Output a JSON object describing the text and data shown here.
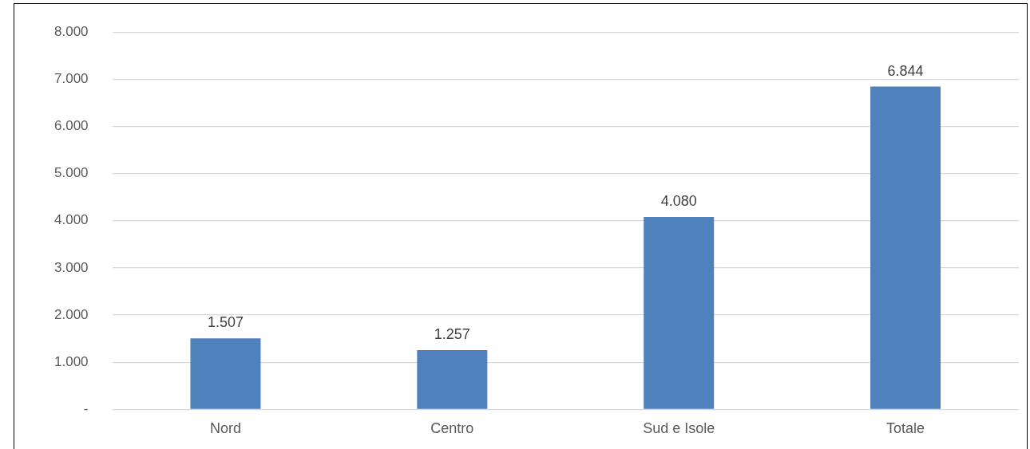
{
  "chart_data": {
    "type": "bar",
    "categories": [
      "Nord",
      "Centro",
      "Sud e Isole",
      "Totale"
    ],
    "values": [
      1507,
      1257,
      4080,
      6844
    ],
    "value_labels": [
      "1.507",
      "1.257",
      "4.080",
      "6.844"
    ],
    "color": "#4f81bd",
    "ylim": [
      0,
      8000
    ],
    "yticks": [
      {
        "value": 0,
        "label": "-"
      },
      {
        "value": 1000,
        "label": "1.000"
      },
      {
        "value": 2000,
        "label": "2.000"
      },
      {
        "value": 3000,
        "label": "3.000"
      },
      {
        "value": 4000,
        "label": "4.000"
      },
      {
        "value": 5000,
        "label": "5.000"
      },
      {
        "value": 6000,
        "label": "6.000"
      },
      {
        "value": 7000,
        "label": "7.000"
      },
      {
        "value": 8000,
        "label": "8.000"
      }
    ],
    "grid": "y",
    "legend": false
  }
}
